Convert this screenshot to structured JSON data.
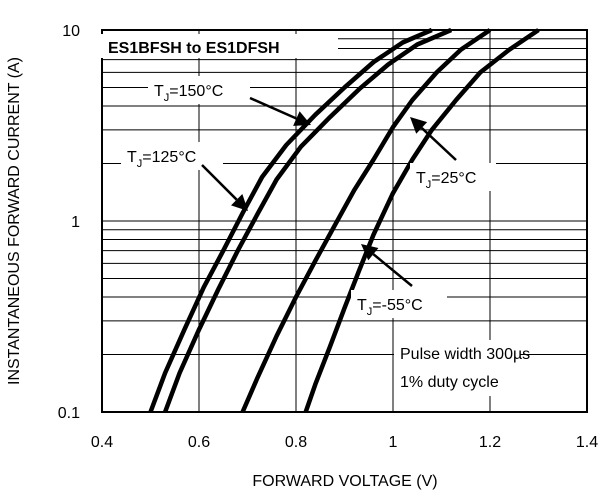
{
  "chart_data": {
    "type": "line",
    "title": "ES1BFSH to ES1DFSH",
    "xlabel": "FORWARD VOLTAGE (V)",
    "ylabel": "INSTANTANEOUS FORWARD CURRENT (A)",
    "xlim": [
      0.4,
      1.4
    ],
    "ylim": [
      0.1,
      10
    ],
    "y_scale": "log",
    "grid": true,
    "x_ticks": [
      "0.4",
      "0.6",
      "0.8",
      "1",
      "1.2",
      "1.4"
    ],
    "y_ticks": [
      "0.1",
      "1",
      "10"
    ],
    "series": [
      {
        "name": "TJ=150°C",
        "label_main": "T",
        "label_sub": "J",
        "label_rest": "=150°C",
        "x": [
          0.5,
          0.53,
          0.57,
          0.61,
          0.65,
          0.69,
          0.73,
          0.78,
          0.84,
          0.9,
          0.96,
          1.02,
          1.08
        ],
        "y": [
          0.1,
          0.16,
          0.27,
          0.45,
          0.7,
          1.1,
          1.7,
          2.5,
          3.6,
          5.0,
          6.8,
          8.6,
          10
        ]
      },
      {
        "name": "TJ=125°C",
        "label_main": "T",
        "label_sub": "J",
        "label_rest": "=125°C",
        "x": [
          0.53,
          0.56,
          0.6,
          0.64,
          0.68,
          0.72,
          0.76,
          0.81,
          0.87,
          0.93,
          0.99,
          1.05,
          1.12
        ],
        "y": [
          0.1,
          0.16,
          0.27,
          0.44,
          0.7,
          1.08,
          1.65,
          2.45,
          3.5,
          4.9,
          6.6,
          8.4,
          10
        ]
      },
      {
        "name": "TJ=25°C",
        "label_main": "T",
        "label_sub": "J",
        "label_rest": "=25°C",
        "x": [
          0.69,
          0.72,
          0.76,
          0.8,
          0.84,
          0.88,
          0.92,
          0.96,
          1.0,
          1.04,
          1.09,
          1.14,
          1.2
        ],
        "y": [
          0.1,
          0.15,
          0.25,
          0.4,
          0.62,
          0.95,
          1.45,
          2.1,
          3.1,
          4.3,
          6.0,
          7.9,
          10
        ]
      },
      {
        "name": "TJ=-55°C",
        "label_main": "T",
        "label_sub": "J",
        "label_rest": "=-55°C",
        "x": [
          0.82,
          0.84,
          0.87,
          0.9,
          0.93,
          0.96,
          1.0,
          1.04,
          1.08,
          1.13,
          1.18,
          1.24,
          1.3
        ],
        "y": [
          0.1,
          0.14,
          0.22,
          0.35,
          0.55,
          0.85,
          1.4,
          2.1,
          3.0,
          4.3,
          6.0,
          7.9,
          10
        ]
      }
    ],
    "annotation": {
      "line1": "Pulse width 300µs",
      "line2": "1% duty cycle"
    }
  }
}
